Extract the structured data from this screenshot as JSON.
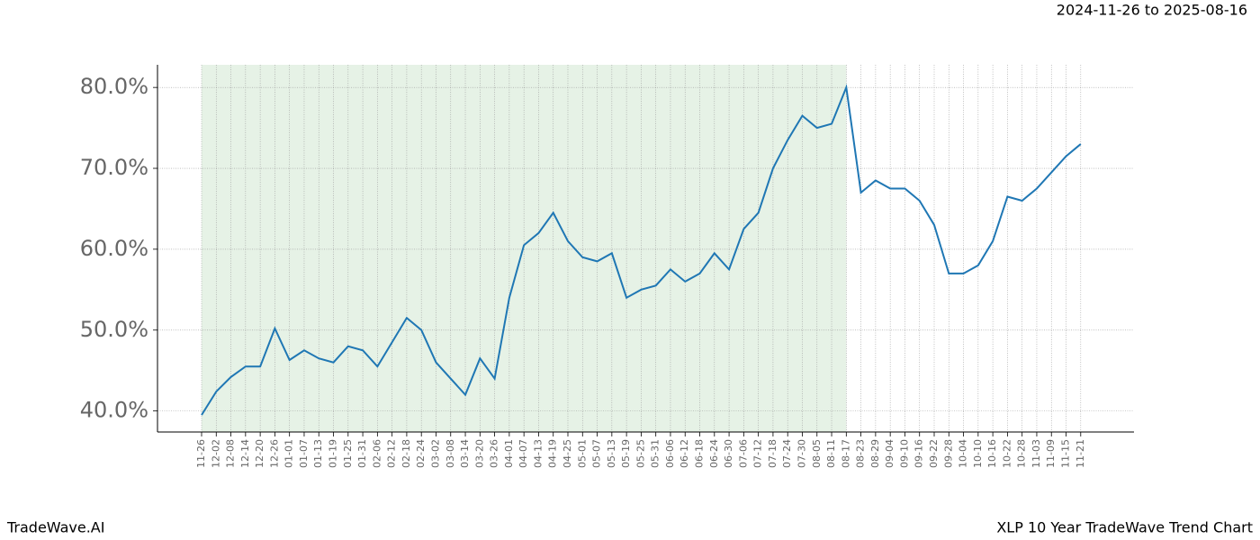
{
  "chart_data": {
    "type": "line",
    "title": "2024-11-26 to 2025-08-16",
    "footer_left": "TradeWave.AI",
    "footer_right": "XLP 10 Year TradeWave Trend Chart",
    "categories": [
      "11-26",
      "12-02",
      "12-08",
      "12-14",
      "12-20",
      "12-26",
      "01-01",
      "01-07",
      "01-13",
      "01-19",
      "01-25",
      "01-31",
      "02-06",
      "02-12",
      "02-18",
      "02-24",
      "03-02",
      "03-08",
      "03-14",
      "03-20",
      "03-26",
      "04-01",
      "04-07",
      "04-13",
      "04-19",
      "04-25",
      "05-01",
      "05-07",
      "05-13",
      "05-19",
      "05-25",
      "05-31",
      "06-06",
      "06-12",
      "06-18",
      "06-24",
      "06-30",
      "07-06",
      "07-12",
      "07-18",
      "07-24",
      "07-30",
      "08-05",
      "08-11",
      "08-17",
      "08-23",
      "08-29",
      "09-04",
      "09-10",
      "09-16",
      "09-22",
      "09-28",
      "10-04",
      "10-10",
      "10-16",
      "10-22",
      "10-28",
      "11-03",
      "11-09",
      "11-15",
      "11-21"
    ],
    "series": [
      {
        "color": "#1f77b4",
        "values": [
          39.5,
          42.4,
          44.2,
          45.5,
          45.5,
          50.2,
          46.3,
          47.5,
          46.5,
          46,
          48,
          47.5,
          45.5,
          48.5,
          51.5,
          50,
          46,
          44,
          42,
          46.5,
          44,
          54,
          60.5,
          62,
          64.5,
          61,
          59,
          58.5,
          59.5,
          54,
          55,
          55.5,
          57.5,
          56,
          57,
          59.5,
          57.5,
          62.5,
          64.5,
          70,
          73.5,
          76.5,
          75,
          75.5,
          80,
          67,
          68.5,
          67.5,
          67.5,
          66,
          63,
          57,
          57,
          58,
          61,
          66.5,
          66,
          67.5,
          69.5,
          71.5,
          73
        ]
      }
    ],
    "ylim": [
      37.4,
      82.8
    ],
    "yticks": [
      {
        "value": 40,
        "label": "40.0%"
      },
      {
        "value": 50,
        "label": "50.0%"
      },
      {
        "value": 60,
        "label": "60.0%"
      },
      {
        "value": 70,
        "label": "70.0%"
      },
      {
        "value": 80,
        "label": "80.0%"
      }
    ],
    "grid": true,
    "shaded_span": [
      "11-26",
      "08-17"
    ],
    "shade_color": "#e6f2e6"
  }
}
